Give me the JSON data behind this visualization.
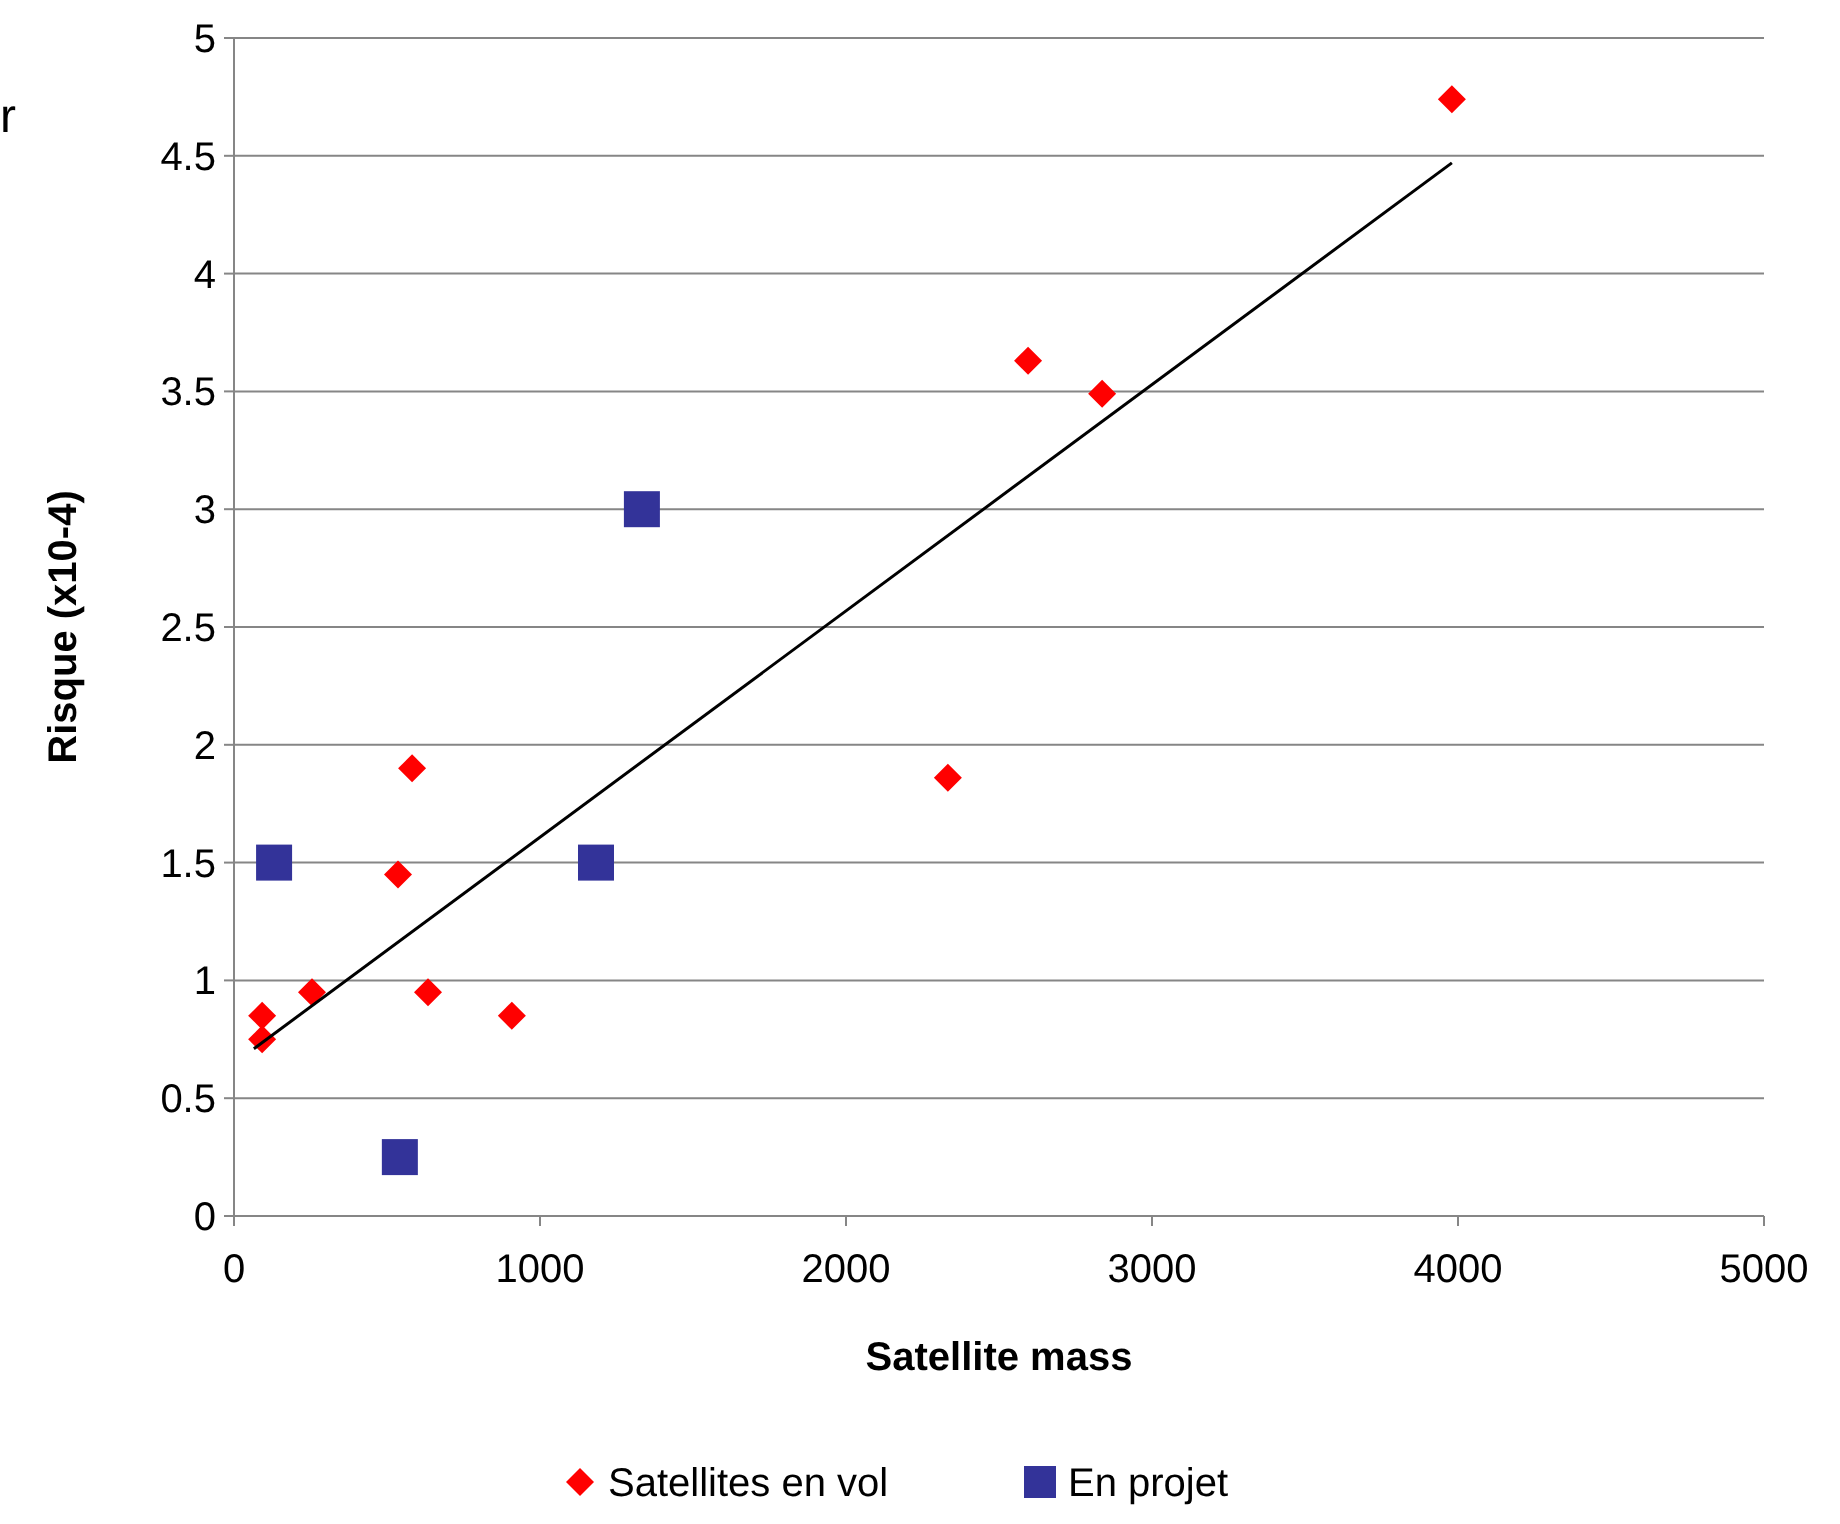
{
  "chart_data": {
    "type": "scatter",
    "xlabel": "Satellite mass",
    "ylabel": "Risque (x10-4)",
    "annotations": [
      "r"
    ],
    "xlim": [
      0,
      5000
    ],
    "xticks": [
      0,
      1000,
      2000,
      3000,
      4000,
      5000
    ],
    "ylim": [
      0,
      5
    ],
    "yticks": [
      0,
      0.5,
      1,
      1.5,
      2,
      2.5,
      3,
      3.5,
      4,
      4.5,
      5
    ],
    "grid": "y",
    "legend": "bottom",
    "series": [
      {
        "name": "Satellites en vol",
        "color": "#ff0000",
        "marker": "diamond",
        "x": [
          92,
          92,
          255,
          536,
          582,
          634,
          908,
          2333,
          2595,
          2837,
          3980
        ],
        "values": [
          0.75,
          0.85,
          0.95,
          1.45,
          1.9,
          0.95,
          0.85,
          1.86,
          3.63,
          3.49,
          4.74
        ]
      },
      {
        "name": "En projet",
        "color": "#333399",
        "marker": "square",
        "x": [
          131,
          542,
          1183,
          1333
        ],
        "values": [
          1.5,
          0.25,
          1.5,
          3
        ]
      },
      {
        "type": "line",
        "color": "#000000",
        "marker": "none",
        "x": [
          65,
          3980
        ],
        "values": [
          0.71,
          4.47
        ]
      }
    ]
  }
}
